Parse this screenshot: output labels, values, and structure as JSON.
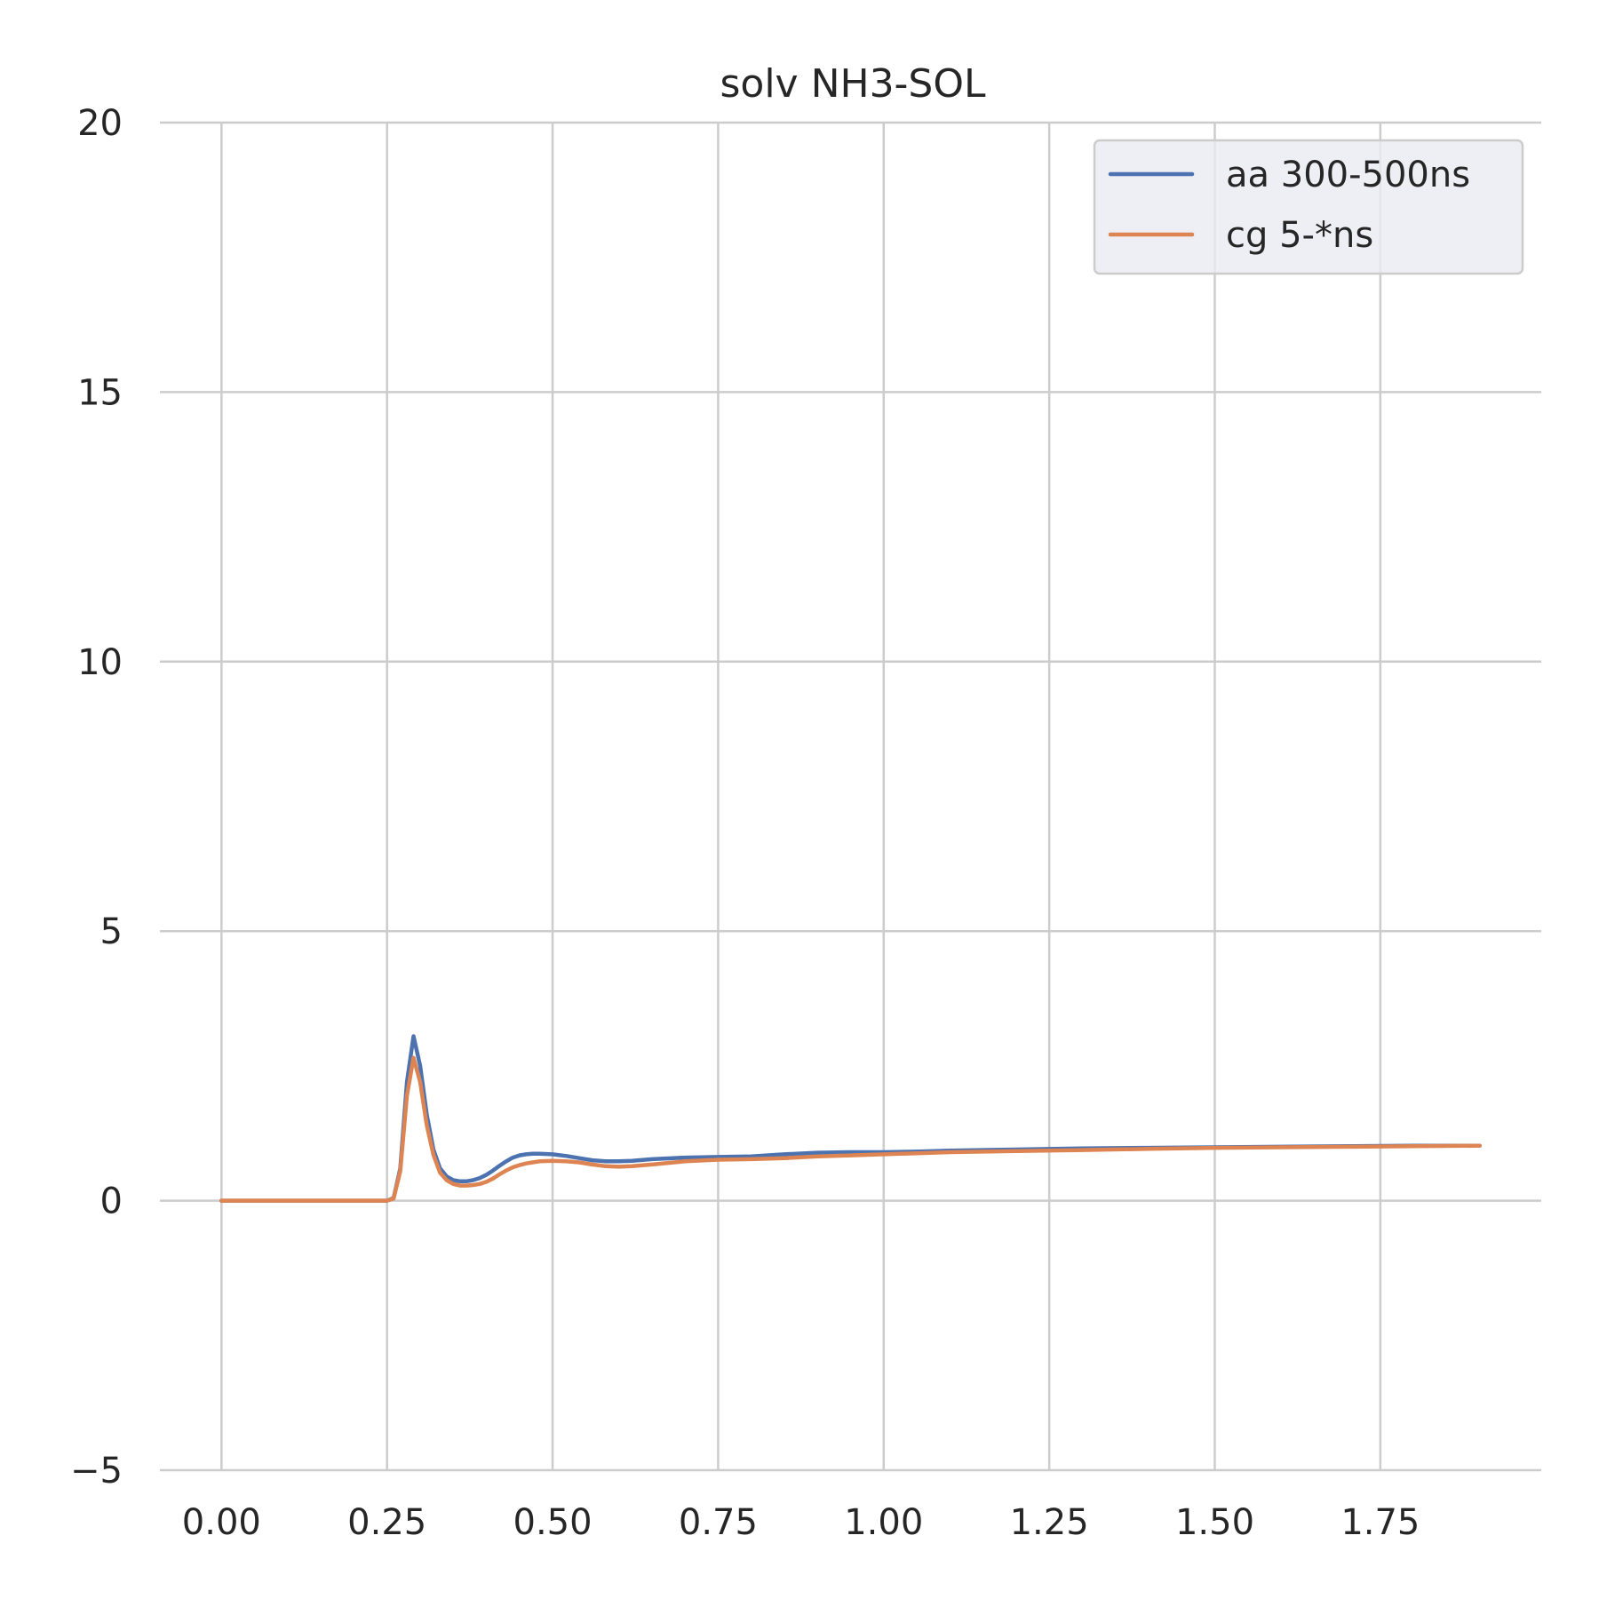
{
  "chart_data": {
    "type": "line",
    "title": "solv NH3-SOL",
    "xlabel": "",
    "ylabel": "",
    "xlim": [
      -0.093,
      1.993
    ],
    "ylim": [
      -5,
      20
    ],
    "grid": true,
    "legend_position": "top-right",
    "xticks": [
      0.0,
      0.25,
      0.5,
      0.75,
      1.0,
      1.25,
      1.5,
      1.75
    ],
    "xtick_labels": [
      "0.00",
      "0.25",
      "0.50",
      "0.75",
      "1.00",
      "1.25",
      "1.50",
      "1.75"
    ],
    "yticks": [
      -5,
      0,
      5,
      10,
      15,
      20
    ],
    "ytick_labels": [
      "−5",
      "0",
      "5",
      "10",
      "15",
      "20"
    ],
    "series": [
      {
        "name": "aa 300-500ns",
        "color": "#4c72b0",
        "x": [
          0.0,
          0.05,
          0.1,
          0.15,
          0.2,
          0.25,
          0.26,
          0.27,
          0.28,
          0.29,
          0.3,
          0.31,
          0.32,
          0.33,
          0.34,
          0.35,
          0.36,
          0.37,
          0.38,
          0.39,
          0.4,
          0.41,
          0.42,
          0.43,
          0.44,
          0.45,
          0.46,
          0.47,
          0.48,
          0.5,
          0.52,
          0.54,
          0.56,
          0.58,
          0.6,
          0.62,
          0.65,
          0.7,
          0.75,
          0.8,
          0.85,
          0.9,
          0.95,
          1.0,
          1.05,
          1.1,
          1.2,
          1.3,
          1.4,
          1.5,
          1.6,
          1.7,
          1.8,
          1.9
        ],
        "y": [
          0.0,
          0.0,
          0.0,
          0.0,
          0.0,
          0.0,
          0.05,
          0.6,
          2.2,
          3.05,
          2.5,
          1.6,
          0.95,
          0.6,
          0.45,
          0.38,
          0.36,
          0.36,
          0.38,
          0.42,
          0.48,
          0.56,
          0.65,
          0.73,
          0.8,
          0.84,
          0.86,
          0.87,
          0.87,
          0.86,
          0.83,
          0.79,
          0.75,
          0.73,
          0.73,
          0.74,
          0.77,
          0.8,
          0.81,
          0.82,
          0.86,
          0.89,
          0.9,
          0.9,
          0.91,
          0.93,
          0.95,
          0.97,
          0.98,
          0.99,
          1.0,
          1.01,
          1.02,
          1.02
        ]
      },
      {
        "name": "cg 5-*ns",
        "color": "#dd8452",
        "x": [
          0.0,
          0.05,
          0.1,
          0.15,
          0.2,
          0.25,
          0.26,
          0.27,
          0.28,
          0.29,
          0.3,
          0.31,
          0.32,
          0.33,
          0.34,
          0.35,
          0.36,
          0.37,
          0.38,
          0.39,
          0.4,
          0.41,
          0.42,
          0.43,
          0.44,
          0.45,
          0.46,
          0.47,
          0.48,
          0.5,
          0.52,
          0.54,
          0.56,
          0.58,
          0.6,
          0.62,
          0.65,
          0.7,
          0.75,
          0.8,
          0.85,
          0.9,
          0.95,
          1.0,
          1.05,
          1.1,
          1.2,
          1.3,
          1.4,
          1.5,
          1.6,
          1.7,
          1.8,
          1.9
        ],
        "y": [
          0.0,
          0.0,
          0.0,
          0.0,
          0.0,
          0.0,
          0.04,
          0.55,
          1.95,
          2.65,
          2.2,
          1.4,
          0.85,
          0.52,
          0.38,
          0.31,
          0.28,
          0.28,
          0.29,
          0.31,
          0.35,
          0.41,
          0.49,
          0.56,
          0.62,
          0.66,
          0.69,
          0.71,
          0.73,
          0.74,
          0.73,
          0.71,
          0.67,
          0.64,
          0.63,
          0.64,
          0.67,
          0.73,
          0.76,
          0.77,
          0.79,
          0.82,
          0.84,
          0.86,
          0.88,
          0.9,
          0.92,
          0.94,
          0.96,
          0.98,
          0.99,
          1.0,
          1.01,
          1.02
        ]
      }
    ]
  }
}
